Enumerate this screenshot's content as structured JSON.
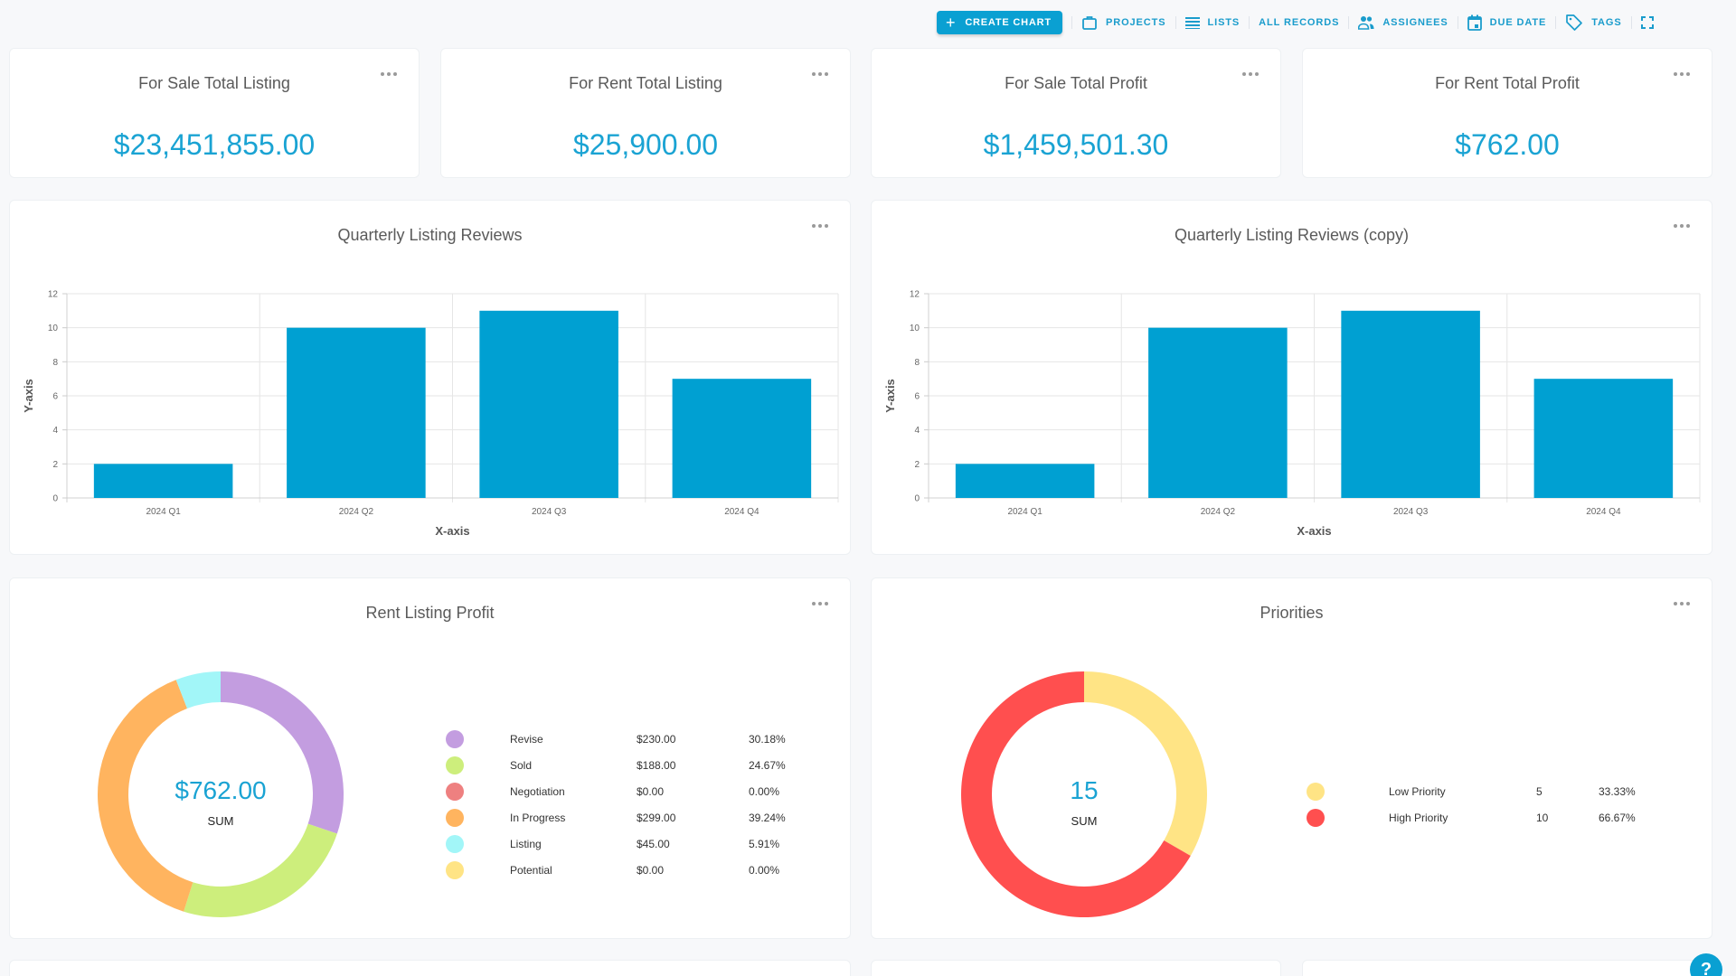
{
  "toolbar": {
    "create_chart": "CREATE CHART",
    "items": [
      {
        "label": "PROJECTS",
        "icon": "briefcase-icon"
      },
      {
        "label": "LISTS",
        "icon": "list-icon"
      },
      {
        "label": "ALL RECORDS",
        "icon": ""
      },
      {
        "label": "ASSIGNEES",
        "icon": "people-icon"
      },
      {
        "label": "DUE DATE",
        "icon": "calendar-icon"
      },
      {
        "label": "TAGS",
        "icon": "tag-icon"
      }
    ],
    "fullscreen_icon": "fullscreen-icon"
  },
  "colors": {
    "accent": "#0aa0d2",
    "bar": "#00a0d2",
    "value_text": "#1aa3d3"
  },
  "kpis": [
    {
      "title": "For Sale Total Listing",
      "value": "$23,451,855.00"
    },
    {
      "title": "For Rent Total Listing",
      "value": "$25,900.00"
    },
    {
      "title": "For Sale Total Profit",
      "value": "$1,459,501.30"
    },
    {
      "title": "For Rent Total Profit",
      "value": "$762.00"
    }
  ],
  "chart_data": [
    {
      "type": "bar",
      "title": "Quarterly Listing Reviews",
      "categories": [
        "2024 Q1",
        "2024 Q2",
        "2024 Q3",
        "2024 Q4"
      ],
      "values": [
        2,
        10,
        11,
        7
      ],
      "xlabel": "X-axis",
      "ylabel": "Y-axis",
      "ylim": [
        0,
        12
      ],
      "yticks": [
        0,
        2,
        4,
        6,
        8,
        10,
        12
      ],
      "grid": true,
      "color": "#00a0d2"
    },
    {
      "type": "bar",
      "title": "Quarterly Listing Reviews (copy)",
      "categories": [
        "2024 Q1",
        "2024 Q2",
        "2024 Q3",
        "2024 Q4"
      ],
      "values": [
        2,
        10,
        11,
        7
      ],
      "xlabel": "X-axis",
      "ylabel": "Y-axis",
      "ylim": [
        0,
        12
      ],
      "yticks": [
        0,
        2,
        4,
        6,
        8,
        10,
        12
      ],
      "grid": true,
      "color": "#00a0d2"
    },
    {
      "type": "pie",
      "title": "Rent Listing Profit",
      "center_value": "$762.00",
      "center_label": "SUM",
      "legend_placement": "right",
      "slices": [
        {
          "label": "Revise",
          "value": 230,
          "value_text": "$230.00",
          "percent": "30.18%",
          "color": "#c39de0"
        },
        {
          "label": "Sold",
          "value": 188,
          "value_text": "$188.00",
          "percent": "24.67%",
          "color": "#cdee7c"
        },
        {
          "label": "Negotiation",
          "value": 0,
          "value_text": "$0.00",
          "percent": "0.00%",
          "color": "#ee8080"
        },
        {
          "label": "In Progress",
          "value": 299,
          "value_text": "$299.00",
          "percent": "39.24%",
          "color": "#ffb45f"
        },
        {
          "label": "Listing",
          "value": 45,
          "value_text": "$45.00",
          "percent": "5.91%",
          "color": "#a2f6f8"
        },
        {
          "label": "Potential",
          "value": 0,
          "value_text": "$0.00",
          "percent": "0.00%",
          "color": "#ffe485"
        }
      ]
    },
    {
      "type": "pie",
      "title": "Priorities",
      "center_value": "15",
      "center_label": "SUM",
      "legend_placement": "right",
      "slices": [
        {
          "label": "Low Priority",
          "value": 5,
          "value_text": "5",
          "percent": "33.33%",
          "color": "#ffe485"
        },
        {
          "label": "High Priority",
          "value": 10,
          "value_text": "10",
          "percent": "66.67%",
          "color": "#ff4f4f"
        }
      ]
    }
  ],
  "help": "?"
}
